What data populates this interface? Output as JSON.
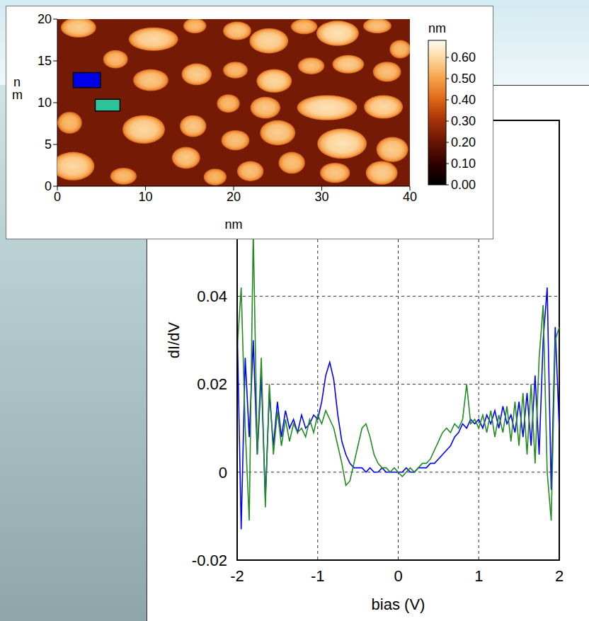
{
  "chart_data": [
    {
      "type": "heatmap",
      "xlabel": "nm",
      "ylabel": "nm",
      "xlim": [
        0,
        40
      ],
      "ylim": [
        0,
        20
      ],
      "xticks": [
        0,
        10,
        20,
        30,
        40
      ],
      "yticks": [
        0,
        5,
        10,
        15,
        20
      ],
      "background_height": 0.22,
      "islands": [
        {
          "x": 2.4,
          "y": 19.0,
          "rx": 2.0,
          "ry": 1.2,
          "height": 0.58
        },
        {
          "x": 10.9,
          "y": 17.6,
          "rx": 2.8,
          "ry": 1.4,
          "height": 0.6
        },
        {
          "x": 15.6,
          "y": 19.2,
          "rx": 1.3,
          "ry": 0.9,
          "height": 0.55
        },
        {
          "x": 20.4,
          "y": 18.6,
          "rx": 1.6,
          "ry": 1.1,
          "height": 0.57
        },
        {
          "x": 24.0,
          "y": 17.4,
          "rx": 2.2,
          "ry": 1.5,
          "height": 0.6
        },
        {
          "x": 28.0,
          "y": 19.1,
          "rx": 1.5,
          "ry": 0.9,
          "height": 0.55
        },
        {
          "x": 31.8,
          "y": 18.3,
          "rx": 2.4,
          "ry": 1.5,
          "height": 0.62
        },
        {
          "x": 36.3,
          "y": 19.2,
          "rx": 1.6,
          "ry": 0.9,
          "height": 0.56
        },
        {
          "x": 38.9,
          "y": 16.4,
          "rx": 1.2,
          "ry": 1.1,
          "height": 0.55
        },
        {
          "x": 6.6,
          "y": 15.2,
          "rx": 1.4,
          "ry": 1.1,
          "height": 0.55
        },
        {
          "x": 10.6,
          "y": 12.7,
          "rx": 2.0,
          "ry": 1.3,
          "height": 0.57
        },
        {
          "x": 15.8,
          "y": 13.4,
          "rx": 1.7,
          "ry": 1.3,
          "height": 0.58
        },
        {
          "x": 20.2,
          "y": 13.9,
          "rx": 1.4,
          "ry": 1.0,
          "height": 0.55
        },
        {
          "x": 24.6,
          "y": 12.6,
          "rx": 2.0,
          "ry": 1.4,
          "height": 0.6
        },
        {
          "x": 28.8,
          "y": 14.4,
          "rx": 1.5,
          "ry": 1.0,
          "height": 0.56
        },
        {
          "x": 33.0,
          "y": 14.6,
          "rx": 1.8,
          "ry": 1.1,
          "height": 0.58
        },
        {
          "x": 37.4,
          "y": 13.7,
          "rx": 1.6,
          "ry": 1.2,
          "height": 0.56
        },
        {
          "x": 19.4,
          "y": 9.9,
          "rx": 1.3,
          "ry": 1.1,
          "height": 0.55
        },
        {
          "x": 23.6,
          "y": 9.4,
          "rx": 1.7,
          "ry": 1.3,
          "height": 0.57
        },
        {
          "x": 30.6,
          "y": 9.4,
          "rx": 3.4,
          "ry": 1.5,
          "height": 0.62
        },
        {
          "x": 37.0,
          "y": 9.5,
          "rx": 2.2,
          "ry": 1.4,
          "height": 0.6
        },
        {
          "x": 1.4,
          "y": 7.6,
          "rx": 1.4,
          "ry": 1.3,
          "height": 0.55
        },
        {
          "x": 9.8,
          "y": 6.8,
          "rx": 2.4,
          "ry": 1.7,
          "height": 0.6
        },
        {
          "x": 15.4,
          "y": 7.2,
          "rx": 1.5,
          "ry": 1.3,
          "height": 0.57
        },
        {
          "x": 20.2,
          "y": 5.5,
          "rx": 1.6,
          "ry": 1.2,
          "height": 0.56
        },
        {
          "x": 25.0,
          "y": 6.4,
          "rx": 2.0,
          "ry": 1.5,
          "height": 0.58
        },
        {
          "x": 32.3,
          "y": 5.1,
          "rx": 2.8,
          "ry": 1.8,
          "height": 0.62
        },
        {
          "x": 38.0,
          "y": 4.4,
          "rx": 1.8,
          "ry": 1.5,
          "height": 0.58
        },
        {
          "x": 1.8,
          "y": 2.4,
          "rx": 2.4,
          "ry": 1.7,
          "height": 0.6
        },
        {
          "x": 7.5,
          "y": 1.2,
          "rx": 1.5,
          "ry": 1.0,
          "height": 0.55
        },
        {
          "x": 14.6,
          "y": 3.4,
          "rx": 1.6,
          "ry": 1.3,
          "height": 0.57
        },
        {
          "x": 17.9,
          "y": 1.1,
          "rx": 1.3,
          "ry": 1.0,
          "height": 0.54
        },
        {
          "x": 21.9,
          "y": 1.8,
          "rx": 1.5,
          "ry": 1.2,
          "height": 0.56
        },
        {
          "x": 26.6,
          "y": 2.8,
          "rx": 1.5,
          "ry": 1.3,
          "height": 0.56
        },
        {
          "x": 31.5,
          "y": 1.6,
          "rx": 1.7,
          "ry": 1.2,
          "height": 0.57
        },
        {
          "x": 36.8,
          "y": 1.6,
          "rx": 1.8,
          "ry": 1.4,
          "height": 0.58
        }
      ],
      "marked_regions": [
        {
          "color": "#0000e8",
          "x": [
            1.8,
            4.9
          ],
          "y": [
            11.8,
            13.6
          ]
        },
        {
          "color": "#2ec49a",
          "x": [
            4.3,
            7.1
          ],
          "y": [
            9.0,
            10.4
          ]
        }
      ],
      "colorbar": {
        "label": "nm",
        "range": [
          0,
          0.68
        ],
        "ticks": [
          {
            "value": 0,
            "label": "0.00"
          },
          {
            "value": 0.1,
            "label": "0.10"
          },
          {
            "value": 0.2,
            "label": "0.20"
          },
          {
            "value": 0.3,
            "label": "0.30"
          },
          {
            "value": 0.4,
            "label": "0.40"
          },
          {
            "value": 0.5,
            "label": "0.50"
          },
          {
            "value": 0.6,
            "label": "0.60"
          }
        ]
      }
    },
    {
      "type": "line",
      "xlabel": "bias (V)",
      "ylabel": "dI/dV",
      "grid": true,
      "xlim": [
        -2,
        2
      ],
      "xticks": [
        -2,
        -1,
        0,
        1,
        2
      ],
      "ylim": [
        -0.02,
        0.08
      ],
      "yticks": [
        -0.02,
        0,
        0.02,
        0.04
      ],
      "x": [
        -2,
        -1.95,
        -1.9,
        -1.85,
        -1.8,
        -1.75,
        -1.7,
        -1.65,
        -1.6,
        -1.55,
        -1.5,
        -1.45,
        -1.4,
        -1.35,
        -1.3,
        -1.25,
        -1.2,
        -1.15,
        -1.1,
        -1.05,
        -1,
        -0.95,
        -0.9,
        -0.85,
        -0.8,
        -0.75,
        -0.7,
        -0.65,
        -0.6,
        -0.55,
        -0.5,
        -0.45,
        -0.4,
        -0.35,
        -0.3,
        -0.25,
        -0.2,
        -0.15,
        -0.1,
        -0.05,
        0,
        0.05,
        0.1,
        0.15,
        0.2,
        0.25,
        0.3,
        0.35,
        0.4,
        0.45,
        0.5,
        0.55,
        0.6,
        0.65,
        0.7,
        0.75,
        0.8,
        0.85,
        0.9,
        0.95,
        1,
        1.05,
        1.1,
        1.15,
        1.2,
        1.25,
        1.3,
        1.35,
        1.4,
        1.45,
        1.5,
        1.55,
        1.6,
        1.65,
        1.7,
        1.75,
        1.8,
        1.85,
        1.9,
        1.95,
        2
      ],
      "series": [
        {
          "color": "#0000ff",
          "values": [
            0.034,
            -0.013,
            0.026,
            0.008,
            0.03,
            0.004,
            0.022,
            -0.006,
            0.018,
            0.006,
            0.016,
            0.008,
            0.014,
            0.01,
            0.012,
            0.009,
            0.013,
            0.01,
            0.011,
            0.013,
            0.012,
            0.016,
            0.022,
            0.025,
            0.021,
            0.013,
            0.007,
            0.004,
            0.002,
            0.001,
            0.001,
            0.001,
            0,
            0.001,
            0,
            0,
            0.001,
            0,
            0,
            0,
            0,
            0,
            0.001,
            0,
            0,
            0.001,
            0.001,
            0.001,
            0.002,
            0.002,
            0.003,
            0.004,
            0.005,
            0.006,
            0.008,
            0.009,
            0.011,
            0.01,
            0.012,
            0.011,
            0.012,
            0.01,
            0.013,
            0.011,
            0.014,
            0.01,
            0.015,
            0.011,
            0.013,
            0.009,
            0.016,
            0.008,
            0.018,
            0.006,
            0.022,
            0.004,
            0.03,
            0.042,
            -0.004,
            0.033,
            0.01
          ]
        },
        {
          "color": "#228b22",
          "values": [
            0.028,
            0.042,
            0.01,
            -0.011,
            0.055,
            0.004,
            0.026,
            -0.008,
            0.02,
            0.004,
            0.014,
            0.006,
            0.012,
            0.007,
            0.011,
            0.009,
            0.01,
            0.008,
            0.012,
            0.009,
            0.013,
            0.011,
            0.014,
            0.012,
            0.01,
            0.006,
            0.002,
            -0.003,
            -0.002,
            0.002,
            0.006,
            0.01,
            0.011,
            0.008,
            0.004,
            0.002,
            0.001,
            0.001,
            0,
            0.001,
            0,
            -0.001,
            0,
            0.001,
            0,
            0.001,
            0.002,
            0.002,
            0.003,
            0.005,
            0.007,
            0.009,
            0.01,
            0.009,
            0.011,
            0.01,
            0.012,
            0.02,
            0.011,
            0.012,
            0.01,
            0.013,
            0.009,
            0.014,
            0.008,
            0.013,
            0.009,
            0.015,
            0.007,
            0.016,
            0.006,
            0.018,
            0.004,
            0.02,
            0.002,
            0.026,
            0.038,
            0,
            -0.011,
            0.03,
            0.033
          ]
        }
      ]
    }
  ]
}
